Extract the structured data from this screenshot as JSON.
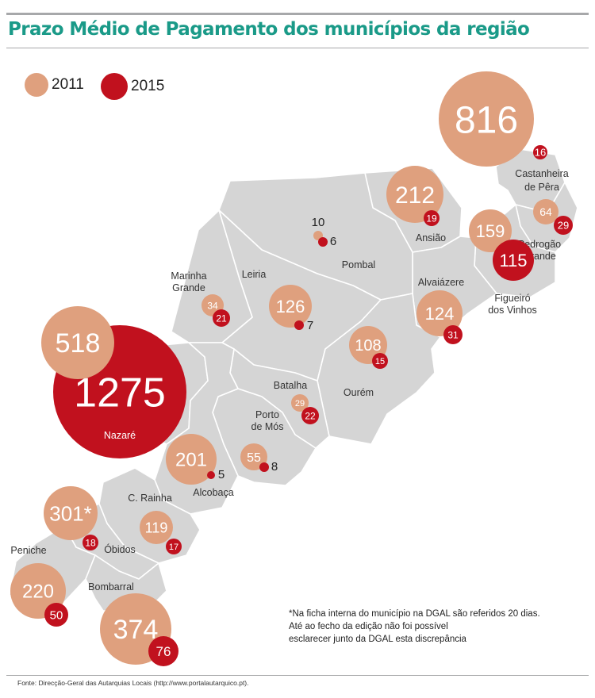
{
  "title": "Prazo Médio de Pagamento dos municípios da região",
  "legend": [
    {
      "label": "2011",
      "color": "#dfa07e"
    },
    {
      "label": "2015",
      "color": "#c1111e"
    }
  ],
  "colors": {
    "land": "#d5d5d5",
    "border": "#ffffff",
    "title": "#1a9a88",
    "circle_2011": "#dfa07e",
    "circle_2015": "#c1111e"
  },
  "municipalities": [
    {
      "name": "Castanheira de Pêra",
      "name_lines": [
        "Castanheira",
        "de Pêra"
      ],
      "v2011": "816",
      "v2015": "16"
    },
    {
      "name": "Ansião",
      "name_lines": [
        "Ansião"
      ],
      "v2011": "212",
      "v2015": "19"
    },
    {
      "name": "Pedrogão Grande",
      "name_lines": [
        "Pedrogão",
        "Grande"
      ],
      "v2011": "64",
      "v2015": "29"
    },
    {
      "name": "Figueiró dos Vinhos",
      "name_lines": [
        "Figueiró",
        "dos Vinhos"
      ],
      "v2011": "159",
      "v2015": "115"
    },
    {
      "name": "Pombal",
      "name_lines": [
        "Pombal"
      ],
      "v2011": "10",
      "v2015": "6"
    },
    {
      "name": "Alvaiázere",
      "name_lines": [
        "Alvaiázere"
      ],
      "v2011": "124",
      "v2015": "31"
    },
    {
      "name": "Marinha Grande",
      "name_lines": [
        "Marinha",
        "Grande"
      ],
      "v2011": "34",
      "v2015": "21"
    },
    {
      "name": "Leiria",
      "name_lines": [
        "Leiria"
      ],
      "v2011": "126",
      "v2015": "7"
    },
    {
      "name": "Ourém",
      "name_lines": [
        "Ourém"
      ],
      "v2011": "108",
      "v2015": "15"
    },
    {
      "name": "Batalha",
      "name_lines": [
        "Batalha"
      ],
      "v2011": "29",
      "v2015": "22"
    },
    {
      "name": "Porto de Mós",
      "name_lines": [
        "Porto",
        "de Mós"
      ],
      "v2011": "55",
      "v2015": "8"
    },
    {
      "name": "Nazaré",
      "name_lines": [
        "Nazaré"
      ],
      "v2011": "518",
      "v2015": "1275"
    },
    {
      "name": "Alcobaça",
      "name_lines": [
        "Alcobaça"
      ],
      "v2011": "201",
      "v2015": "5"
    },
    {
      "name": "C. Rainha",
      "name_lines": [
        "C. Rainha"
      ],
      "v2011": "119",
      "v2015": "17"
    },
    {
      "name": "Óbidos",
      "name_lines": [
        "Óbidos"
      ],
      "v2011": "301*",
      "v2015": "18"
    },
    {
      "name": "Peniche",
      "name_lines": [
        "Peniche"
      ],
      "v2011": "220",
      "v2015": "50"
    },
    {
      "name": "Bombarral",
      "name_lines": [
        "Bombarral"
      ],
      "v2011": "374",
      "v2015": "76"
    }
  ],
  "note": [
    "*Na ficha interna do município na DGAL são referidos 20 dias.",
    "Até ao fecho da edição não foi possível",
    "esclarecer junto da DGAL esta discrepância"
  ],
  "source": "Fonte: Direcção-Geral das Autarquias Locais (http://www.portalautarquico.pt)."
}
